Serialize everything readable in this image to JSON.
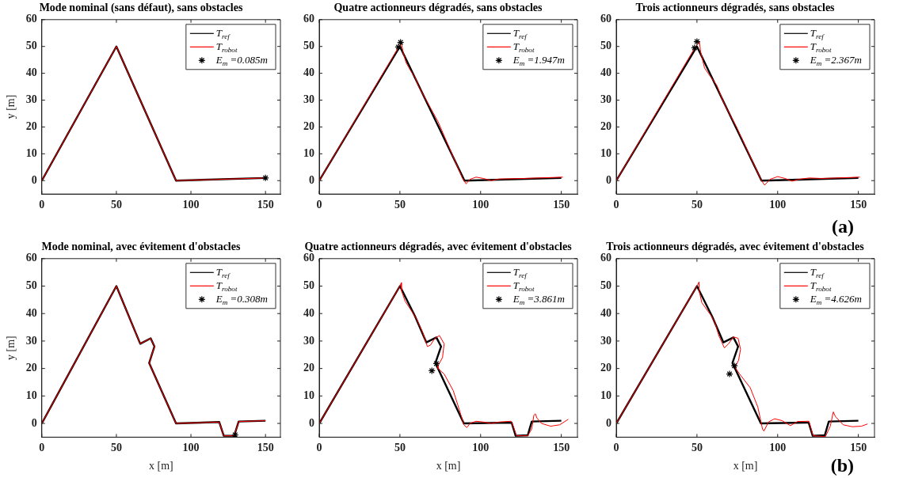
{
  "chart_data": [
    {
      "type": "line",
      "title": "Mode nominal (sans défaut), sans obstacles",
      "ylabel": "y [m]",
      "xlim": [
        0,
        160
      ],
      "ylim": [
        -5,
        60
      ],
      "xticks": [
        0,
        50,
        100,
        150
      ],
      "yticks": [
        0,
        10,
        20,
        30,
        40,
        50,
        60
      ],
      "grid": false,
      "legend": "top right",
      "series": [
        {
          "name": "T$_{ref}$",
          "color": "#000000",
          "x": [
            0,
            50,
            90,
            150
          ],
          "values": [
            0,
            50,
            0,
            1
          ]
        },
        {
          "name": "T$_{robot}$",
          "color": "#ff0000",
          "x": [
            0,
            50,
            90,
            150
          ],
          "values": [
            0,
            50,
            0,
            1
          ]
        },
        {
          "name": "E$_{m}$ =0.085m",
          "type": "scatter",
          "marker": "cross",
          "color": "#000000",
          "x": [
            150
          ],
          "values": [
            1
          ]
        }
      ]
    },
    {
      "type": "line",
      "title": "Quatre actionneurs dégradés, sans obstacles",
      "xlim": [
        0,
        160
      ],
      "ylim": [
        -5,
        60
      ],
      "xticks": [
        0,
        50,
        100,
        150
      ],
      "yticks": [
        0,
        10,
        20,
        30,
        40,
        50,
        60
      ],
      "grid": false,
      "legend": "top right",
      "series": [
        {
          "name": "T$_{ref}$",
          "color": "#000000",
          "x": [
            0,
            50,
            90,
            150
          ],
          "values": [
            0,
            50,
            0,
            1
          ]
        },
        {
          "name": "T$_{robot}$",
          "color": "#ff0000",
          "x": [
            0,
            49,
            50.9,
            51.9,
            53.8,
            56.6,
            59.4,
            61.3,
            73.6,
            88.7,
            91,
            93.4,
            97.2,
            101.9,
            106.6,
            111.3,
            126,
            151
          ],
          "values": [
            0,
            49.5,
            51.5,
            48,
            44,
            41,
            38.5,
            35.5,
            22,
            1,
            -1.2,
            0.5,
            1.3,
            0.8,
            0,
            0.6,
            0.8,
            1.3
          ]
        },
        {
          "name": "E$_{m}$ =1.947m",
          "type": "scatter",
          "marker": "cross",
          "color": "#000000",
          "x": [
            49,
            50.4
          ],
          "values": [
            49.8,
            51.5
          ]
        }
      ]
    },
    {
      "type": "line",
      "title": "Trois actionneurs dégradés, sans obstacles",
      "xlim": [
        0,
        160
      ],
      "ylim": [
        -5,
        60
      ],
      "xticks": [
        0,
        50,
        100,
        150
      ],
      "yticks": [
        0,
        10,
        20,
        30,
        40,
        50,
        60
      ],
      "grid": false,
      "legend": "top right",
      "annotations": [
        "(a)"
      ],
      "series": [
        {
          "name": "T$_{ref}$",
          "color": "#000000",
          "x": [
            0,
            50,
            90,
            150
          ],
          "values": [
            0,
            50,
            0,
            1
          ]
        },
        {
          "name": "T$_{robot}$",
          "color": "#ff0000",
          "x": [
            0,
            48.7,
            51.5,
            52.3,
            54.7,
            57.5,
            62.3,
            67,
            74.5,
            89.6,
            91.9,
            95.3,
            100,
            104.7,
            108.9,
            113.2,
            119.8,
            127.4,
            151
          ],
          "values": [
            0,
            49.5,
            51.8,
            48,
            42,
            39.5,
            35.5,
            28.5,
            20,
            0.5,
            -1.7,
            0.5,
            1.5,
            0.8,
            -0.2,
            0.5,
            1,
            0.8,
            1.3
          ]
        },
        {
          "name": "E$_{m}$ =2.367m",
          "type": "scatter",
          "marker": "cross",
          "color": "#000000",
          "x": [
            48.5,
            50
          ],
          "values": [
            49.5,
            51.8
          ]
        }
      ]
    },
    {
      "type": "line",
      "title": "Mode nominal, avec évitement d'obstacles",
      "xlabel": "x [m]",
      "ylabel": "y [m]",
      "xlim": [
        0,
        160
      ],
      "ylim": [
        -5,
        60
      ],
      "xticks": [
        0,
        50,
        100,
        150
      ],
      "yticks": [
        0,
        10,
        20,
        30,
        40,
        50,
        60
      ],
      "grid": false,
      "legend": "top right",
      "series": [
        {
          "name": "T$_{ref}$",
          "color": "#000000",
          "x": [
            0,
            50,
            66,
            73,
            75.5,
            72,
            90,
            119,
            122,
            129,
            132,
            150
          ],
          "values": [
            0,
            50,
            29,
            31,
            28,
            22,
            0,
            0.5,
            -4.5,
            -4.5,
            0.7,
            1
          ]
        },
        {
          "name": "T$_{robot}$",
          "color": "#ff0000",
          "x": [
            0,
            50,
            66,
            73,
            75.5,
            72,
            90,
            119,
            122,
            129,
            132,
            150
          ],
          "values": [
            0,
            50,
            29,
            31,
            28,
            22,
            0,
            0.5,
            -4.5,
            -4.5,
            0.7,
            1
          ]
        },
        {
          "name": "E$_{m}$ =0.308m",
          "type": "scatter",
          "marker": "cross",
          "color": "#000000",
          "x": [
            129.6
          ],
          "values": [
            -4.2
          ]
        }
      ]
    },
    {
      "type": "line",
      "title": "Quatre actionneurs dégradés, avec évitement d'obstacles",
      "xlabel": "x [m]",
      "xlim": [
        0,
        160
      ],
      "ylim": [
        -5,
        60
      ],
      "xticks": [
        0,
        50,
        100,
        150
      ],
      "yticks": [
        0,
        10,
        20,
        30,
        40,
        50,
        60
      ],
      "grid": false,
      "legend": "top right",
      "series": [
        {
          "name": "T$_{ref}$",
          "color": "#000000",
          "x": [
            0,
            50,
            59.4,
            66.4,
            72.6,
            75.5,
            72,
            89.6,
            119.2,
            121.7,
            129.2,
            131.7,
            150
          ],
          "values": [
            0,
            50,
            39,
            29.5,
            31.3,
            28,
            22,
            0,
            0.3,
            -4.5,
            -4.3,
            0.7,
            1
          ]
        },
        {
          "name": "T$_{robot}$",
          "color": "#ff0000",
          "x": [
            0,
            50,
            50.9,
            50.9,
            53.2,
            56.6,
            60.4,
            64.2,
            67,
            68.9,
            71.7,
            74.5,
            77.4,
            76.4,
            73.6,
            73.6,
            77.4,
            83,
            86.8,
            89.6,
            91.5,
            93.4,
            97.2,
            101.9,
            106.6,
            111.3,
            118.9,
            120.8,
            122.3,
            129.2,
            131.7,
            133,
            133.9,
            134.9,
            137.7,
            143.4,
            149,
            154.3
          ],
          "values": [
            0,
            50,
            51.3,
            48.5,
            44.5,
            41.5,
            38,
            33,
            28,
            28.5,
            31,
            32,
            29,
            24,
            21,
            20,
            18,
            12,
            5,
            -0.5,
            -1.5,
            0,
            0.8,
            0.5,
            0,
            0.5,
            0.8,
            -2,
            -4.5,
            -4.5,
            -2,
            3,
            3.5,
            2,
            0,
            -1,
            -0.5,
            1.5
          ]
        },
        {
          "name": "E$_{m}$ =3.861m",
          "type": "scatter",
          "marker": "cross",
          "color": "#000000",
          "x": [
            69.8,
            72.6
          ],
          "values": [
            19.2,
            21.8
          ]
        }
      ]
    },
    {
      "type": "line",
      "title": "Trois actionneurs dégradés, avec évitement d'obstacles",
      "xlabel": "x [m]",
      "xlim": [
        0,
        160
      ],
      "ylim": [
        -5,
        60
      ],
      "xticks": [
        0,
        50,
        100,
        150
      ],
      "yticks": [
        0,
        10,
        20,
        30,
        40,
        50,
        60
      ],
      "grid": false,
      "legend": "top right",
      "annotations": [
        "(b)"
      ],
      "series": [
        {
          "name": "T$_{ref}$",
          "color": "#000000",
          "x": [
            0,
            50,
            59.4,
            66.4,
            72.6,
            75.5,
            72,
            89.6,
            119.2,
            121.7,
            129.2,
            131.7,
            150
          ],
          "values": [
            0,
            50,
            39,
            29.5,
            31.3,
            28,
            22,
            0,
            0.3,
            -4.5,
            -4.3,
            0.7,
            1
          ]
        },
        {
          "name": "T$_{robot}$",
          "color": "#ff0000",
          "x": [
            0,
            50,
            51.3,
            51.3,
            53,
            56,
            58.5,
            61.3,
            63.5,
            67,
            69.6,
            72.6,
            75.5,
            77,
            75.8,
            73.6,
            76.4,
            83,
            87.7,
            90.6,
            91.5,
            94.3,
            98.1,
            102.8,
            107.9,
            112.3,
            119.4,
            122,
            129.6,
            132.6,
            134.5,
            135.8,
            140.6,
            146.2,
            151.9,
            155.7
          ],
          "values": [
            0,
            50,
            51.5,
            48.5,
            44,
            41.5,
            39.5,
            36.5,
            32,
            27.5,
            29,
            31.5,
            31,
            27,
            23,
            20.5,
            18,
            13,
            6,
            -2,
            -2.8,
            0.5,
            1.7,
            1,
            -0.8,
            0.7,
            0.8,
            -4.5,
            -4.8,
            -1,
            4.2,
            2.5,
            -0.5,
            -1.2,
            -1,
            -0.2
          ]
        },
        {
          "name": "E$_{m}$ =4.626m",
          "type": "scatter",
          "marker": "cross",
          "color": "#000000",
          "x": [
            70.2,
            73.2
          ],
          "values": [
            18,
            21
          ]
        }
      ]
    }
  ]
}
